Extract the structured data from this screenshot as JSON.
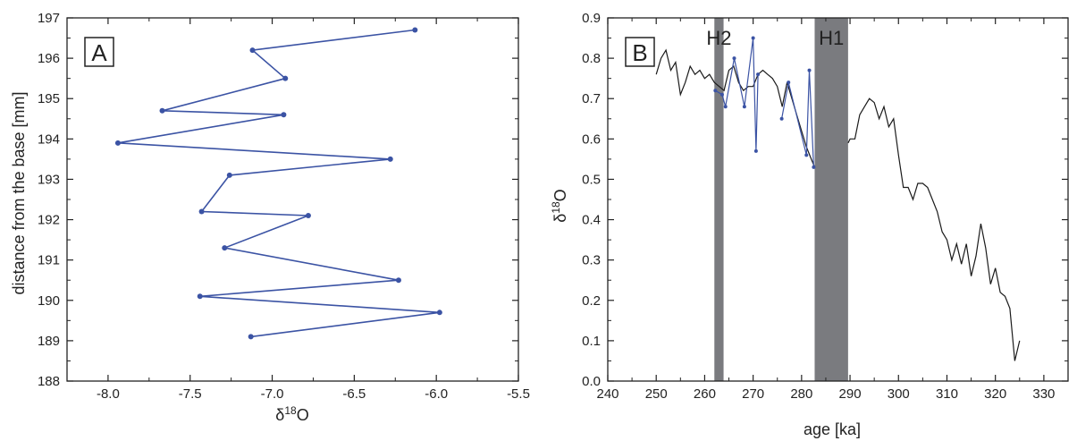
{
  "chart_data": [
    {
      "type": "line",
      "panel_label": "A",
      "xlabel_main": "δ",
      "xlabel_sup": "18",
      "xlabel_tail": "O",
      "ylabel": "distance from the base [mm]",
      "xlim": [
        -8.25,
        -5.5
      ],
      "ylim": [
        188,
        197
      ],
      "x_ticks": [
        -8.0,
        -7.5,
        -7.0,
        -6.5,
        -6.0,
        -5.5
      ],
      "x_tick_labels": [
        "-8.0",
        "-7.5",
        "-7.0",
        "-6.5",
        "-6.0",
        "-5.5"
      ],
      "y_ticks": [
        188,
        189,
        190,
        191,
        192,
        193,
        194,
        195,
        196,
        197
      ],
      "y_tick_labels": [
        "188",
        "189",
        "190",
        "191",
        "192",
        "193",
        "194",
        "195",
        "196",
        "197"
      ],
      "series_color": "#3b53a4",
      "series": [
        {
          "x": [
            -6.13,
            -7.12,
            -6.92,
            -7.67,
            -6.93,
            -7.94,
            -6.28,
            -7.26,
            -7.43,
            -6.78,
            -7.29,
            -6.23,
            -7.44,
            -5.98,
            -7.13
          ],
          "y": [
            196.7,
            196.2,
            195.5,
            194.7,
            194.6,
            193.9,
            193.5,
            193.1,
            192.2,
            192.1,
            191.3,
            190.5,
            190.1,
            189.7,
            189.1
          ]
        }
      ]
    },
    {
      "type": "line",
      "panel_label": "B",
      "xlabel": "age [ka]",
      "ylabel_main": "δ",
      "ylabel_sup": "18",
      "ylabel_tail": "O",
      "xlim": [
        240,
        335
      ],
      "ylim": [
        0.0,
        0.9
      ],
      "x_ticks": [
        240,
        250,
        260,
        270,
        280,
        290,
        300,
        310,
        320,
        330
      ],
      "x_tick_labels": [
        "240",
        "250",
        "260",
        "270",
        "280",
        "290",
        "300",
        "310",
        "320",
        "330"
      ],
      "y_ticks": [
        0.0,
        0.1,
        0.2,
        0.3,
        0.4,
        0.5,
        0.6,
        0.7,
        0.8,
        0.9
      ],
      "y_tick_labels": [
        "0.0",
        "0.1",
        "0.2",
        "0.3",
        "0.4",
        "0.5",
        "0.6",
        "0.7",
        "0.8",
        "0.9"
      ],
      "band_color": "#7a7b7f",
      "bands": [
        {
          "label": "H2",
          "x0": 262.0,
          "x1": 263.9
        },
        {
          "label": "H1",
          "x0": 282.7,
          "x1": 289.6
        }
      ],
      "series": [
        {
          "color": "#1a1a1a",
          "x": [
            250,
            251,
            252,
            253,
            254,
            255,
            256,
            257,
            258,
            259,
            260,
            261,
            262,
            264,
            265,
            266,
            267,
            268,
            269,
            270,
            271,
            272,
            273,
            274,
            275,
            276,
            277,
            278,
            279,
            280,
            281,
            282,
            282.7,
            289.6,
            290,
            291,
            292,
            293,
            294,
            295,
            296,
            297,
            298,
            299,
            300,
            301,
            302,
            303,
            304,
            305,
            306,
            307,
            308,
            309,
            310,
            311,
            312,
            313,
            314,
            315,
            316,
            317,
            318,
            319,
            320,
            321,
            322,
            323,
            324,
            325
          ],
          "y": [
            0.76,
            0.8,
            0.82,
            0.77,
            0.79,
            0.71,
            0.74,
            0.78,
            0.76,
            0.77,
            0.75,
            0.76,
            0.74,
            0.72,
            0.77,
            0.78,
            0.74,
            0.72,
            0.73,
            0.73,
            0.76,
            0.77,
            0.76,
            0.75,
            0.73,
            0.68,
            0.74,
            0.7,
            0.66,
            0.62,
            0.58,
            0.55,
            0.53,
            0.59,
            0.6,
            0.6,
            0.66,
            0.68,
            0.7,
            0.69,
            0.65,
            0.68,
            0.63,
            0.65,
            0.56,
            0.48,
            0.48,
            0.45,
            0.49,
            0.49,
            0.48,
            0.45,
            0.42,
            0.37,
            0.35,
            0.3,
            0.34,
            0.29,
            0.34,
            0.26,
            0.31,
            0.39,
            0.33,
            0.24,
            0.28,
            0.22,
            0.21,
            0.18,
            0.05,
            0.1
          ]
        },
        {
          "color": "#3b53a4",
          "markers": true,
          "x": [
            262.2,
            263.6,
            264.3,
            266.1,
            268.2,
            270.0,
            270.6,
            271.0,
            275.9,
            277.3,
            281.0,
            281.6,
            282.5
          ],
          "y": [
            0.72,
            0.71,
            0.68,
            0.8,
            0.68,
            0.85,
            0.57,
            0.76,
            0.65,
            0.74,
            0.56,
            0.77,
            0.53
          ]
        }
      ]
    }
  ]
}
